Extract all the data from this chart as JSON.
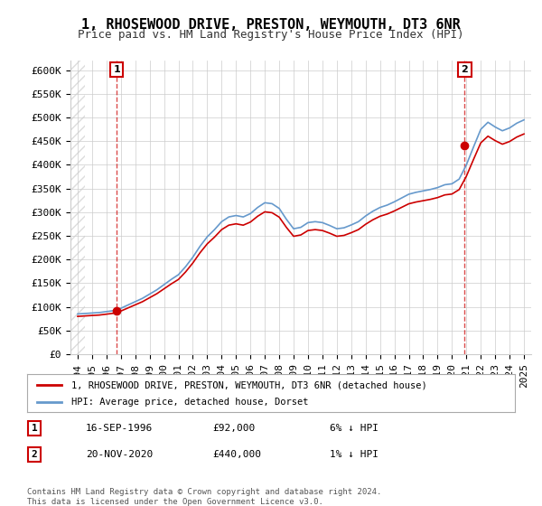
{
  "title": "1, RHOSEWOOD DRIVE, PRESTON, WEYMOUTH, DT3 6NR",
  "subtitle": "Price paid vs. HM Land Registry's House Price Index (HPI)",
  "ylabel_ticks": [
    0,
    50000,
    100000,
    150000,
    200000,
    250000,
    300000,
    350000,
    400000,
    450000,
    500000,
    550000,
    600000
  ],
  "ylabel_labels": [
    "£0",
    "£50K",
    "£100K",
    "£150K",
    "£200K",
    "£250K",
    "£300K",
    "£350K",
    "£400K",
    "£450K",
    "£500K",
    "£550K",
    "£600K"
  ],
  "xlim": [
    1993.5,
    2025.5
  ],
  "ylim": [
    0,
    620000
  ],
  "hpi_color": "#6699cc",
  "property_color": "#cc0000",
  "sale1_x": 1996.71,
  "sale1_y": 92000,
  "sale2_x": 2020.88,
  "sale2_y": 440000,
  "legend_label1": "1, RHOSEWOOD DRIVE, PRESTON, WEYMOUTH, DT3 6NR (detached house)",
  "legend_label2": "HPI: Average price, detached house, Dorset",
  "table_row1": [
    "1",
    "16-SEP-1996",
    "£92,000",
    "6% ↓ HPI"
  ],
  "table_row2": [
    "2",
    "20-NOV-2020",
    "£440,000",
    "1% ↓ HPI"
  ],
  "footer": "Contains HM Land Registry data © Crown copyright and database right 2024.\nThis data is licensed under the Open Government Licence v3.0.",
  "background_color": "#ffffff",
  "grid_color": "#cccccc",
  "hatch_color": "#dddddd",
  "title_fontsize": 11,
  "subtitle_fontsize": 9,
  "axis_fontsize": 8,
  "hpi_data_x": [
    1994,
    1994.5,
    1995,
    1995.5,
    1996,
    1996.5,
    1997,
    1997.5,
    1998,
    1998.5,
    1999,
    1999.5,
    2000,
    2000.5,
    2001,
    2001.5,
    2002,
    2002.5,
    2003,
    2003.5,
    2004,
    2004.5,
    2005,
    2005.5,
    2006,
    2006.5,
    2007,
    2007.5,
    2008,
    2008.5,
    2009,
    2009.5,
    2010,
    2010.5,
    2011,
    2011.5,
    2012,
    2012.5,
    2013,
    2013.5,
    2014,
    2014.5,
    2015,
    2015.5,
    2016,
    2016.5,
    2017,
    2017.5,
    2018,
    2018.5,
    2019,
    2019.5,
    2020,
    2020.5,
    2021,
    2021.5,
    2022,
    2022.5,
    2023,
    2023.5,
    2024,
    2024.5,
    2025
  ],
  "hpi_data_y": [
    85000,
    86000,
    87000,
    88000,
    90000,
    92000,
    97000,
    104000,
    111000,
    118000,
    127000,
    136000,
    147000,
    158000,
    168000,
    185000,
    205000,
    228000,
    248000,
    263000,
    280000,
    290000,
    293000,
    290000,
    297000,
    310000,
    320000,
    318000,
    308000,
    285000,
    265000,
    268000,
    278000,
    280000,
    278000,
    272000,
    265000,
    267000,
    273000,
    280000,
    292000,
    302000,
    310000,
    315000,
    322000,
    330000,
    338000,
    342000,
    345000,
    348000,
    352000,
    358000,
    360000,
    370000,
    400000,
    438000,
    475000,
    490000,
    480000,
    472000,
    478000,
    488000,
    495000
  ],
  "property_data_x": [
    1994,
    1996.71,
    2020.88,
    2025
  ],
  "property_data_y": [
    85000,
    92000,
    440000,
    488000
  ]
}
